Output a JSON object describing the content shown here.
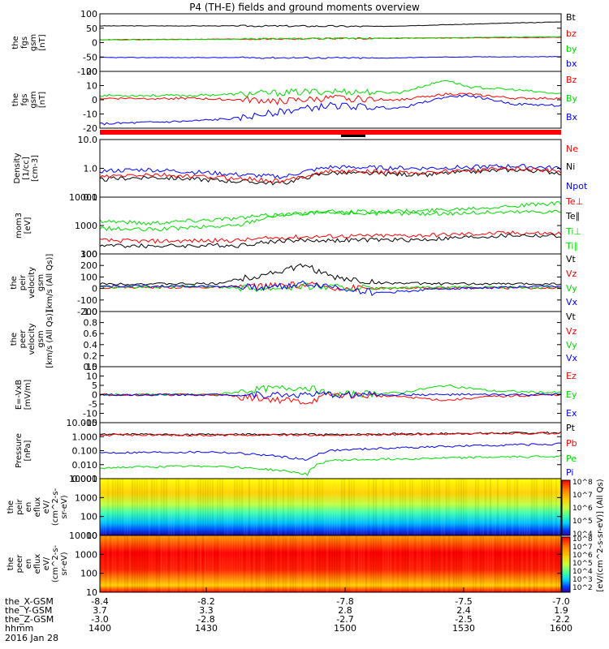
{
  "title": "P4 (TH-E) fields and ground moments overview",
  "date_label": "2016 Jan 28",
  "time_axis": {
    "rows": [
      {
        "label": "the_X-GSM",
        "values": [
          "-8.4",
          "-8.2",
          "-7.8",
          "-7.5",
          "-7.0"
        ]
      },
      {
        "label": "the_Y-GSM",
        "values": [
          "3.7",
          "3.3",
          "2.8",
          "2.4",
          "1.9"
        ]
      },
      {
        "label": "the_Z-GSM",
        "values": [
          "-3.0",
          "-2.8",
          "-2.7",
          "-2.5",
          "-2.2"
        ]
      },
      {
        "label": "hhmm",
        "values": [
          "1400",
          "1430",
          "1500",
          "1530",
          "1600"
        ]
      }
    ]
  },
  "colors": {
    "black": "#000000",
    "red": "#ff0000",
    "green": "#00dd00",
    "blue": "#0000ff"
  },
  "chart_data": [
    {
      "id": "p1",
      "type": "line",
      "ylabel": [
        "the",
        "fgs",
        "gsm",
        "[nT]"
      ],
      "ylim": [
        -100,
        100
      ],
      "ticks": [
        "100",
        "50",
        "0",
        "-50",
        "-100"
      ],
      "legend": [
        {
          "name": "Bt",
          "color": "black"
        },
        {
          "name": "bz",
          "color": "red"
        },
        {
          "name": "by",
          "color": "green"
        },
        {
          "name": "bx",
          "color": "blue"
        }
      ],
      "series": [
        {
          "name": "Bt",
          "x": [
            0,
            0.25,
            0.5,
            0.6,
            0.75,
            1
          ],
          "y": [
            58,
            58,
            57,
            56,
            62,
            72
          ]
        },
        {
          "name": "bz",
          "x": [
            0,
            0.5,
            1
          ],
          "y": [
            10,
            14,
            18
          ]
        },
        {
          "name": "by",
          "x": [
            0,
            0.5,
            1
          ],
          "y": [
            9,
            14,
            20
          ]
        },
        {
          "name": "bx",
          "x": [
            0,
            0.25,
            0.5,
            0.6,
            0.75,
            1
          ],
          "y": [
            -52,
            -52,
            -53,
            -54,
            -50,
            -49
          ]
        }
      ]
    },
    {
      "id": "p2",
      "type": "line",
      "ylabel": [
        "the",
        "fgs",
        "gsm",
        "[nT]"
      ],
      "ylim": [
        -20,
        20
      ],
      "ticks": [
        "20",
        "10",
        "0",
        "-10",
        "-20"
      ],
      "legend": [
        {
          "name": "Bz",
          "color": "red"
        },
        {
          "name": "By",
          "color": "green"
        },
        {
          "name": "Bx",
          "color": "blue"
        }
      ],
      "series": [
        {
          "name": "Bz",
          "x": [
            0,
            0.2,
            0.3,
            0.4,
            0.5,
            0.65,
            0.75,
            0.8,
            0.9,
            1
          ],
          "y": [
            1,
            1,
            0,
            -1,
            1,
            0,
            4,
            4,
            1,
            1
          ]
        },
        {
          "name": "By",
          "x": [
            0,
            0.2,
            0.3,
            0.4,
            0.5,
            0.65,
            0.75,
            0.8,
            0.9,
            1
          ],
          "y": [
            3,
            3,
            4,
            5,
            6,
            5,
            14,
            9,
            7,
            4
          ]
        },
        {
          "name": "Bx",
          "x": [
            0,
            0.2,
            0.3,
            0.4,
            0.5,
            0.65,
            0.75,
            0.8,
            0.9,
            1
          ],
          "y": [
            -17,
            -15,
            -13,
            -8,
            -4,
            -6,
            2,
            3,
            -3,
            -4
          ]
        }
      ]
    },
    {
      "id": "p3",
      "type": "line",
      "ylabel": [
        "Density",
        "[1/cc]",
        "[cm-3]"
      ],
      "ylim": [
        0.1,
        10
      ],
      "log": true,
      "ticks": [
        "10.0",
        "1.0",
        "0.1"
      ],
      "legend": [
        {
          "name": "Ne",
          "color": "red"
        },
        {
          "name": "Ni",
          "color": "black"
        },
        {
          "name": "Npot",
          "color": "blue"
        }
      ],
      "series": [
        {
          "name": "Npot",
          "x": [
            0,
            0.1,
            0.3,
            0.4,
            0.5,
            0.7,
            0.9,
            1
          ],
          "y": [
            0.8,
            0.9,
            0.6,
            0.5,
            1.1,
            1.0,
            1.2,
            1.0
          ]
        },
        {
          "name": "Ni",
          "x": [
            0,
            0.1,
            0.3,
            0.4,
            0.5,
            0.7,
            0.9,
            1
          ],
          "y": [
            0.4,
            0.5,
            0.35,
            0.3,
            0.7,
            0.6,
            0.9,
            0.7
          ]
        },
        {
          "name": "Ne",
          "x": [
            0,
            0.1,
            0.3,
            0.4,
            0.5,
            0.7,
            0.9,
            1
          ],
          "y": [
            0.5,
            0.6,
            0.45,
            0.35,
            0.8,
            0.7,
            1.0,
            0.8
          ]
        }
      ]
    },
    {
      "id": "p4",
      "type": "line",
      "ylabel": [
        "mom3",
        "[eV]"
      ],
      "ylim": [
        100,
        10000
      ],
      "log": true,
      "ticks": [
        "10000",
        "1000",
        "100"
      ],
      "legend": [
        {
          "name": "Te⊥",
          "color": "red"
        },
        {
          "name": "Te∥",
          "color": "black"
        },
        {
          "name": "Ti⊥",
          "color": "green"
        },
        {
          "name": "Ti∥",
          "color": "green"
        }
      ],
      "series": [
        {
          "name": "Ti⊥",
          "x": [
            0,
            0.1,
            0.3,
            0.4,
            0.5,
            0.7,
            0.9,
            1
          ],
          "y": [
            1500,
            1200,
            1800,
            2500,
            3000,
            3200,
            5000,
            6000
          ]
        },
        {
          "name": "Ti∥",
          "x": [
            0,
            0.1,
            0.3,
            0.4,
            0.5,
            0.7,
            0.9,
            1
          ],
          "y": [
            800,
            700,
            1000,
            2500,
            2800,
            2600,
            3000,
            3200
          ]
        },
        {
          "name": "Te⊥",
          "x": [
            0,
            0.1,
            0.3,
            0.4,
            0.5,
            0.7,
            0.9,
            1
          ],
          "y": [
            300,
            280,
            300,
            380,
            420,
            450,
            550,
            520
          ]
        },
        {
          "name": "Te∥",
          "x": [
            0,
            0.1,
            0.3,
            0.4,
            0.5,
            0.7,
            0.9,
            1
          ],
          "y": [
            200,
            190,
            200,
            300,
            300,
            320,
            450,
            430
          ]
        }
      ]
    },
    {
      "id": "p5",
      "type": "line",
      "ylabel": [
        "the",
        "peir",
        "velocity",
        "gsm",
        "[km/s (All Qs)]"
      ],
      "ylim": [
        -200,
        300
      ],
      "ticks": [
        "300",
        "200",
        "100",
        "0",
        "-100",
        "-200"
      ],
      "legend": [
        {
          "name": "Vt",
          "color": "black"
        },
        {
          "name": "Vz",
          "color": "red"
        },
        {
          "name": "Vy",
          "color": "green"
        },
        {
          "name": "Vx",
          "color": "blue"
        }
      ],
      "series": [
        {
          "name": "Vt",
          "x": [
            0,
            0.25,
            0.35,
            0.45,
            0.5,
            0.6,
            0.75,
            1
          ],
          "y": [
            40,
            40,
            120,
            200,
            100,
            50,
            40,
            40
          ]
        },
        {
          "name": "Vz",
          "x": [
            0,
            0.25,
            0.35,
            0.45,
            0.5,
            0.6,
            0.75,
            1
          ],
          "y": [
            10,
            10,
            20,
            30,
            10,
            0,
            5,
            5
          ]
        },
        {
          "name": "Vy",
          "x": [
            0,
            0.25,
            0.35,
            0.45,
            0.5,
            0.6,
            0.75,
            1
          ],
          "y": [
            15,
            15,
            0,
            20,
            10,
            0,
            10,
            10
          ]
        },
        {
          "name": "Vx",
          "x": [
            0,
            0.25,
            0.35,
            0.45,
            0.5,
            0.6,
            0.75,
            1
          ],
          "y": [
            20,
            20,
            10,
            40,
            20,
            -40,
            0,
            20
          ]
        }
      ]
    },
    {
      "id": "p6",
      "type": "line",
      "ylabel": [
        "the",
        "peer",
        "velocity",
        "gsm",
        "[km/s (All Qs)]"
      ],
      "ylim": [
        0,
        1
      ],
      "ticks": [
        "1.0",
        "0.8",
        "0.6",
        "0.4",
        "0.2",
        "0.0"
      ],
      "legend": [
        {
          "name": "Vt",
          "color": "black"
        },
        {
          "name": "Vz",
          "color": "red"
        },
        {
          "name": "Vy",
          "color": "green"
        },
        {
          "name": "Vx",
          "color": "blue"
        }
      ],
      "series": []
    },
    {
      "id": "p7",
      "type": "line",
      "ylabel": [
        "E=-VxB",
        "[mV/m]"
      ],
      "ylim": [
        -15,
        15
      ],
      "ticks": [
        "15",
        "10",
        "5",
        "0",
        "-5",
        "-10",
        "-15"
      ],
      "legend": [
        {
          "name": "Ez",
          "color": "red"
        },
        {
          "name": "Ey",
          "color": "green"
        },
        {
          "name": "Ex",
          "color": "blue"
        }
      ],
      "series": [
        {
          "name": "Ey",
          "x": [
            0,
            0.25,
            0.35,
            0.45,
            0.5,
            0.65,
            0.75,
            0.85,
            1
          ],
          "y": [
            0,
            0,
            3,
            4,
            0,
            1,
            5,
            2,
            1
          ]
        },
        {
          "name": "Ez",
          "x": [
            0,
            0.25,
            0.35,
            0.45,
            0.5,
            0.65,
            0.75,
            0.85,
            1
          ],
          "y": [
            0,
            0,
            -2,
            -4,
            0,
            -1,
            -3,
            -1,
            0
          ]
        },
        {
          "name": "Ex",
          "x": [
            0,
            0.5,
            1
          ],
          "y": [
            0,
            0,
            0
          ]
        }
      ]
    },
    {
      "id": "p8",
      "type": "line",
      "ylabel": [
        "Pressure",
        "[nPa]"
      ],
      "ylim": [
        0.001,
        10
      ],
      "log": true,
      "ticks": [
        "10.000",
        "1.000",
        "0.100",
        "0.010",
        "0.001"
      ],
      "legend": [
        {
          "name": "Pt",
          "color": "black"
        },
        {
          "name": "Pb",
          "color": "red"
        },
        {
          "name": "Pe",
          "color": "green"
        },
        {
          "name": "Pi",
          "color": "blue"
        }
      ],
      "series": [
        {
          "name": "Pt",
          "x": [
            0,
            0.5,
            1
          ],
          "y": [
            1.4,
            1.4,
            1.9
          ]
        },
        {
          "name": "Pb",
          "x": [
            0,
            0.5,
            1
          ],
          "y": [
            1.3,
            1.3,
            1.8
          ]
        },
        {
          "name": "Pi",
          "x": [
            0,
            0.25,
            0.45,
            0.5,
            0.75,
            1
          ],
          "y": [
            0.07,
            0.08,
            0.02,
            0.1,
            0.2,
            0.3
          ]
        },
        {
          "name": "Pe",
          "x": [
            0,
            0.25,
            0.45,
            0.5,
            0.75,
            1
          ],
          "y": [
            0.006,
            0.008,
            0.002,
            0.02,
            0.03,
            0.04
          ]
        }
      ]
    },
    {
      "id": "p9",
      "type": "heatmap",
      "ylabel": [
        "the",
        "peir",
        "en",
        "eflux",
        "eV/",
        "(cm^2-s-",
        "sr-eV)"
      ],
      "ylim": [
        5,
        20000
      ],
      "log": true,
      "ticks": [
        "10000",
        "1000",
        "100",
        "10"
      ]
    },
    {
      "id": "p10",
      "type": "heatmap",
      "ylabel": [
        "the",
        "peer",
        "en",
        "eflux",
        "eV/",
        "(cm^2-s-",
        "sr-eV)"
      ],
      "ylim": [
        5,
        20000
      ],
      "log": true,
      "ticks": [
        "10000",
        "1000",
        "100",
        "10"
      ]
    }
  ],
  "colorbar": {
    "label": "[eV/(cm^2-s-sr-eV)]  (All Qs)",
    "ticks_top": [
      "10^8",
      "10^7",
      "10^6",
      "10^5",
      "10^4"
    ],
    "ticks_bottom": [
      "10^8",
      "10^7",
      "10^6",
      "10^5",
      "10^4",
      "10^3",
      "10^2"
    ]
  }
}
